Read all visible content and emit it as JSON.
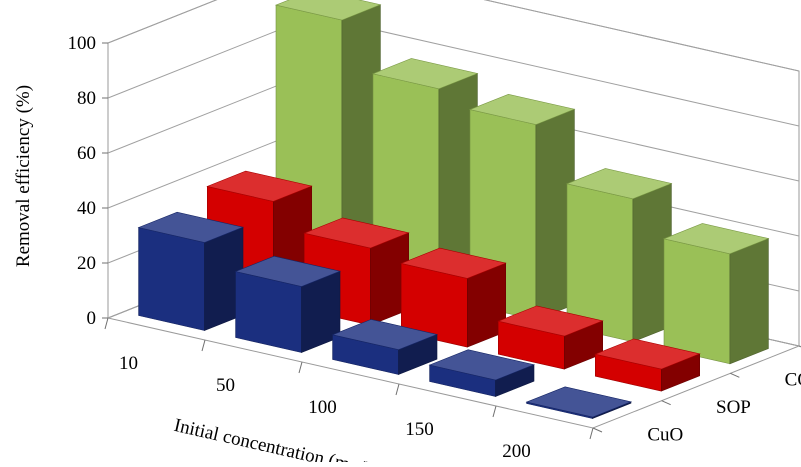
{
  "chart_data": {
    "type": "bar",
    "subtype": "3d-column",
    "title": "",
    "categories": [
      "10",
      "50",
      "100",
      "150",
      "200"
    ],
    "series": [
      {
        "name": "CuO",
        "values": [
          32,
          24,
          9,
          6,
          0.5
        ],
        "color": "#1b2f7f"
      },
      {
        "name": "SOP",
        "values": [
          37,
          28,
          25,
          12,
          8
        ],
        "color": "#d40000"
      },
      {
        "name": "COP",
        "values": [
          93,
          76,
          71,
          52,
          40
        ],
        "color": "#9ac057"
      }
    ],
    "xlabel": "Initial concentration (mg/L)",
    "ylabel": "Removal efficiency (%)",
    "ylim": [
      0,
      100
    ],
    "yticks": [
      "0",
      "20",
      "40",
      "60",
      "80",
      "100"
    ],
    "depth_labels": [
      "CuO",
      "SOP",
      "COP"
    ],
    "grid": true,
    "legend": "none"
  }
}
